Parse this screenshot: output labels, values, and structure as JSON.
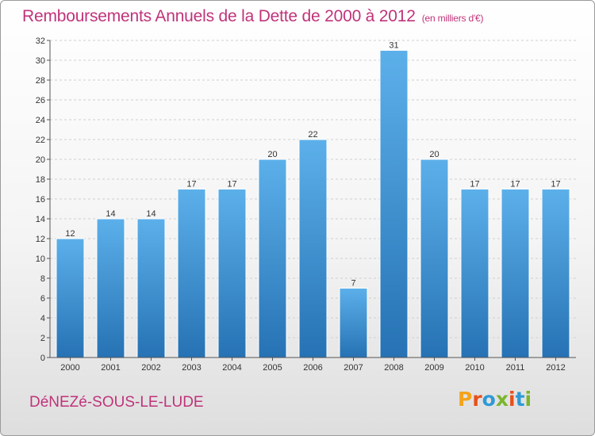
{
  "header": {
    "title": "Remboursements Annuels de la Dette de 2000 à 2012",
    "unit": "(en milliers d'€)"
  },
  "footer": {
    "commune": "DéNEZé-SOUS-LE-LUDE",
    "logo_letters": [
      "P",
      "r",
      "o",
      "x",
      "i",
      "t",
      "i"
    ],
    "logo_colors": [
      "#f3a31b",
      "#e8501b",
      "#2e9ad6",
      "#7bb52d",
      "#e8501b",
      "#2e9ad6",
      "#7bb52d"
    ]
  },
  "colors": {
    "bar_light": "#5cb0ea",
    "bar_dark": "#2672b4",
    "title": "#c0337a"
  },
  "chart_data": {
    "type": "bar",
    "title": "Remboursements Annuels de la Dette de 2000 à 2012",
    "subtitle": "(en milliers d'€)",
    "categories": [
      "2000",
      "2001",
      "2002",
      "2003",
      "2004",
      "2005",
      "2006",
      "2007",
      "2008",
      "2009",
      "2010",
      "2011",
      "2012"
    ],
    "values": [
      12,
      14,
      14,
      17,
      17,
      20,
      22,
      7,
      31,
      20,
      17,
      17,
      17
    ],
    "ylim": [
      0,
      32
    ],
    "yticks": [
      0,
      2,
      4,
      6,
      8,
      10,
      12,
      14,
      16,
      18,
      20,
      22,
      24,
      26,
      28,
      30,
      32
    ],
    "grid": true
  }
}
